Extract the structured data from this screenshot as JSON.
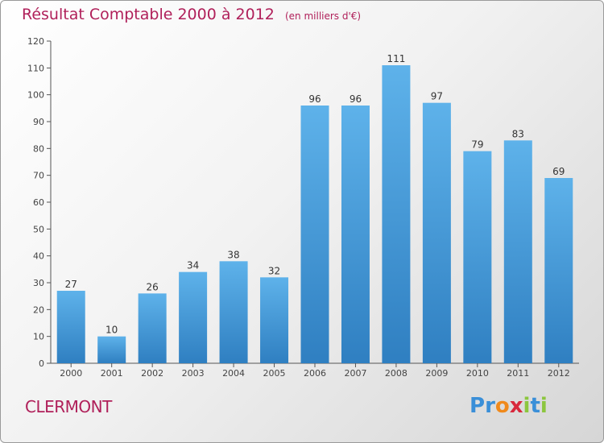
{
  "header": {
    "title": "Résultat Comptable 2000 à 2012",
    "unit": "(en milliers d'€)"
  },
  "footer": {
    "commune": "CLERMONT",
    "logo_letters": [
      "P",
      "r",
      "o",
      "x",
      "i",
      "t",
      "i"
    ],
    "logo_colors": [
      "#3a8fd8",
      "#3a8fd8",
      "#f08a1c",
      "#d8283c",
      "#8cc63e",
      "#3a8fd8",
      "#8cc63e"
    ]
  },
  "colors": {
    "bar_top": "#5eb2ea",
    "bar_bottom": "#2f7fc1",
    "title": "#b0205a"
  },
  "chart_data": {
    "type": "bar",
    "title": "Résultat Comptable 2000 à 2012",
    "subtitle": "(en milliers d'€)",
    "categories": [
      "2000",
      "2001",
      "2002",
      "2003",
      "2004",
      "2005",
      "2006",
      "2007",
      "2008",
      "2009",
      "2010",
      "2011",
      "2012"
    ],
    "values": [
      27,
      10,
      26,
      34,
      38,
      32,
      96,
      96,
      111,
      97,
      79,
      83,
      69
    ],
    "ylim": [
      0,
      120
    ],
    "yticks": [
      0,
      10,
      20,
      30,
      40,
      50,
      60,
      70,
      80,
      90,
      100,
      110,
      120
    ],
    "grid": false,
    "xlabel": "",
    "ylabel": ""
  }
}
